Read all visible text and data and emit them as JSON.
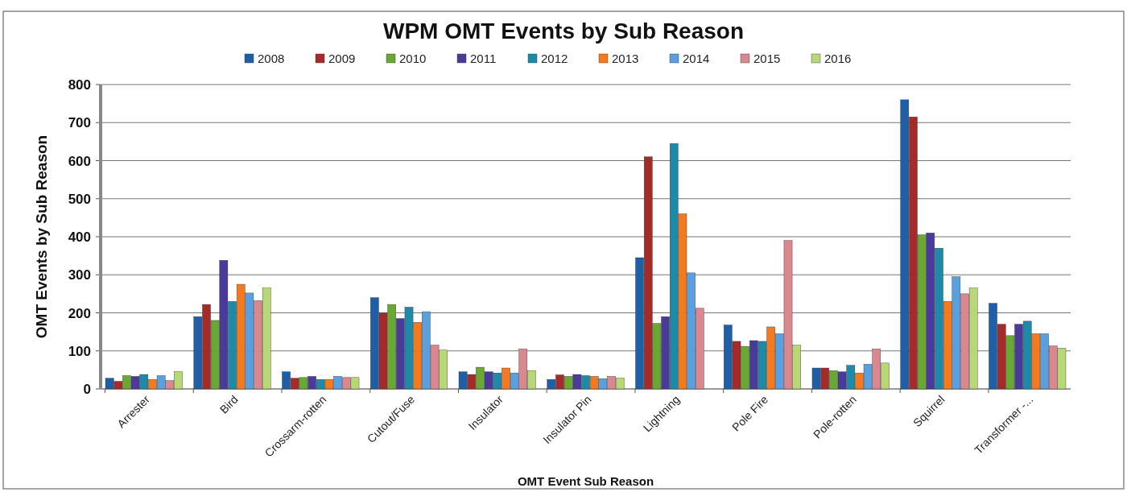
{
  "chart_data": {
    "type": "bar",
    "title": "WPM OMT Events by Sub Reason",
    "xlabel": "OMT Event Sub Reason",
    "ylabel": "OMT Events by Sub Reason",
    "categories": [
      "Arrester",
      "Bird",
      "Crossarm-rotten",
      "Cutout/Fuse",
      "Insulator",
      "Insulator Pin",
      "Lightning",
      "Pole Fire",
      "Pole-rotten",
      "Squirrel",
      "Transformer -..."
    ],
    "series": [
      {
        "name": "2008",
        "color": "#1f5fa8",
        "values": [
          28,
          190,
          45,
          240,
          45,
          25,
          345,
          168,
          55,
          760,
          225
        ]
      },
      {
        "name": "2009",
        "color": "#a52a2a",
        "values": [
          20,
          222,
          28,
          200,
          38,
          37,
          610,
          125,
          55,
          715,
          170
        ]
      },
      {
        "name": "2010",
        "color": "#6aa834",
        "values": [
          35,
          180,
          30,
          222,
          57,
          33,
          172,
          112,
          48,
          405,
          140
        ]
      },
      {
        "name": "2011",
        "color": "#4a3a9a",
        "values": [
          33,
          338,
          33,
          185,
          45,
          38,
          190,
          127,
          45,
          410,
          170
        ]
      },
      {
        "name": "2012",
        "color": "#1f8aa8",
        "values": [
          38,
          230,
          25,
          215,
          42,
          35,
          645,
          125,
          62,
          370,
          178
        ]
      },
      {
        "name": "2013",
        "color": "#f47a20",
        "values": [
          25,
          275,
          25,
          175,
          55,
          33,
          460,
          163,
          42,
          230,
          145
        ]
      },
      {
        "name": "2014",
        "color": "#5aa0e0",
        "values": [
          35,
          252,
          33,
          203,
          42,
          27,
          305,
          145,
          65,
          295,
          145
        ]
      },
      {
        "name": "2015",
        "color": "#d98890",
        "values": [
          22,
          232,
          30,
          115,
          105,
          33,
          212,
          390,
          105,
          250,
          113
        ]
      },
      {
        "name": "2016",
        "color": "#b8d878",
        "values": [
          45,
          265,
          30,
          102,
          48,
          28,
          null,
          115,
          68,
          265,
          107
        ]
      }
    ],
    "ylim": [
      0,
      800
    ],
    "yticks": [
      0,
      100,
      200,
      300,
      400,
      500,
      600,
      700,
      800
    ],
    "grid": "y",
    "legend": "top"
  }
}
